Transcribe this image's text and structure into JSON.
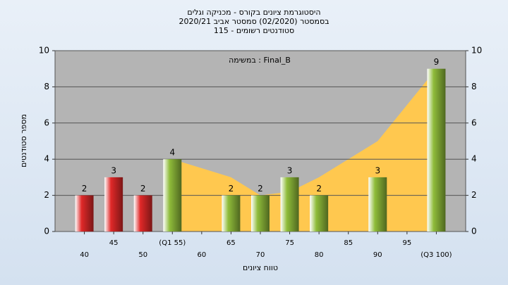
{
  "chart_data": {
    "type": "bar",
    "title": "היסטוגרמת ציונים בקורס - מכניקה וגלים",
    "subtitle": "בסמסטר  (02/2020)  סמסטר אביב 2020/21",
    "subtitle2": "סטודנטים רשומים - 115",
    "annotation": "במשימה : Final_B",
    "y_label": "מספר סטודנטים",
    "x_label": "טווח ציונים",
    "categories": [
      "40",
      "45",
      "50",
      "(Q1 55)",
      "60",
      "65",
      "70",
      "75",
      "80",
      "85",
      "90",
      "95",
      "(Q3 100)"
    ],
    "values": [
      2,
      3,
      2,
      4,
      null,
      2,
      2,
      3,
      2,
      null,
      3,
      null,
      9
    ],
    "colors": [
      "#e02828",
      "#e02828",
      "#e02828",
      "#8fbc3a",
      null,
      "#8fbc3a",
      "#8fbc3a",
      "#8fbc3a",
      "#8fbc3a",
      null,
      "#8fbc3a",
      null,
      "#8fbc3a"
    ],
    "area": {
      "color": "#ffc84f",
      "values": [
        null,
        null,
        null,
        4,
        3.5,
        3,
        2,
        2.2,
        3,
        4,
        5,
        7,
        9
      ]
    },
    "ylim": [
      0,
      10
    ],
    "yticks": [
      0,
      2,
      4,
      6,
      8,
      10
    ],
    "grid": true
  }
}
